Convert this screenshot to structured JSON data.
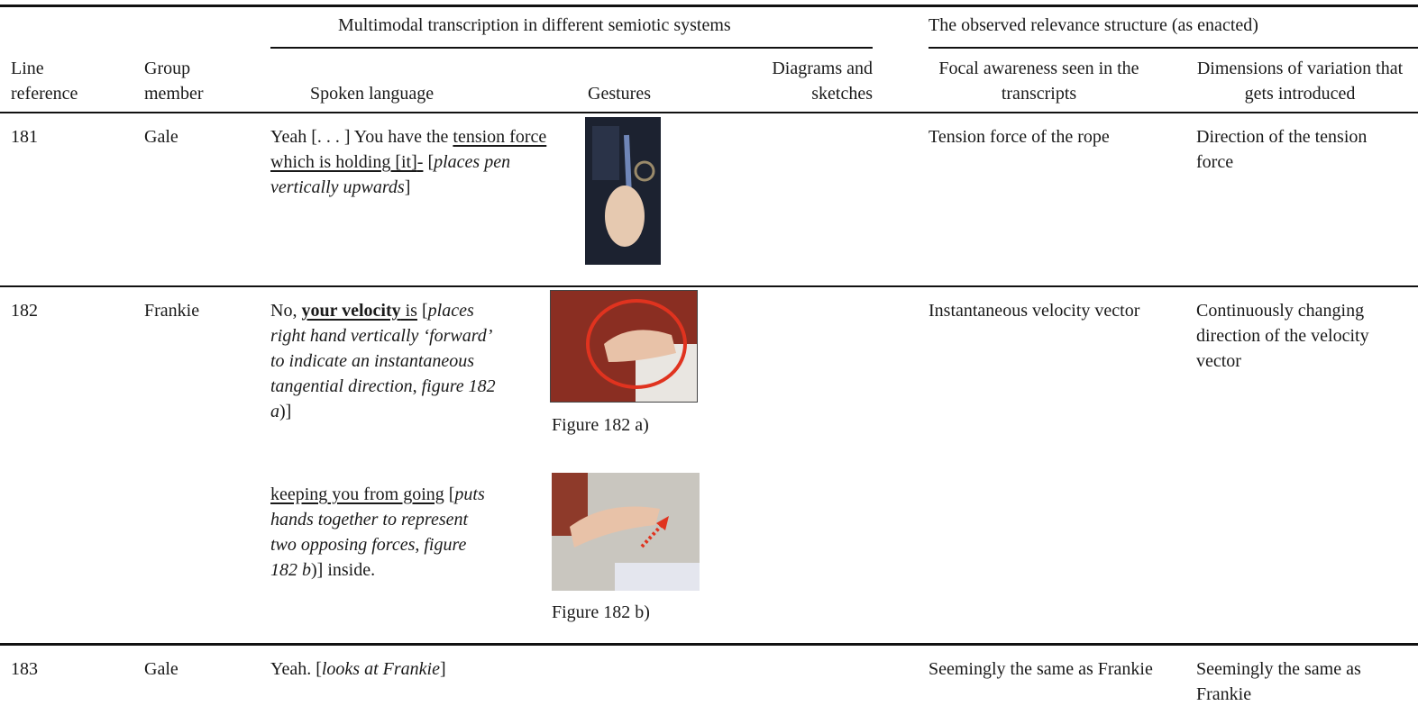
{
  "table": {
    "group_headers": [
      "Multimodal transcription in different semiotic systems",
      "The observed relevance structure (as enacted)"
    ],
    "columns": [
      "Line reference",
      "Group member",
      "Spoken language",
      "Gestures",
      "Diagrams and sketches",
      "Focal awareness seen in the transcripts",
      "Dimensions of variation that gets introduced"
    ],
    "rows": [
      {
        "line": "181",
        "member": "Gale",
        "spoken": [
          [
            "Yeah [. . . ] You have the ",
            "tension force which is holding [it]",
            "-",
            "[",
            "places pen vertically upwards",
            "]"
          ]
        ],
        "focal": "Tension force of the rope",
        "dimensions": "Direction of the tension force"
      },
      {
        "line": "182",
        "member": "Frankie",
        "spoken": [
          [
            "No, ",
            "your velocity",
            " is",
            " [",
            "places right hand vertically ‘forward’ to indicate an instantaneous tangential direction",
            ", ",
            "figure 182 a",
            ")]"
          ],
          [
            "keeping you from going",
            " [",
            "puts hands together to represent two opposing forces",
            ", ",
            "figure 182 b",
            ")] inside."
          ]
        ],
        "gesture_captions": [
          "Figure 182 a)",
          "Figure 182 b)"
        ],
        "focal": "Instantaneous velocity vector",
        "dimensions": "Continuously changing direction of the velocity vector"
      },
      {
        "line": "183",
        "member": "Gale",
        "spoken": [
          [
            "Yeah. [",
            "looks at Frankie",
            "]"
          ]
        ],
        "focal": "Seemingly the same as Frankie",
        "dimensions": "Seemingly the same as Frankie"
      }
    ]
  }
}
